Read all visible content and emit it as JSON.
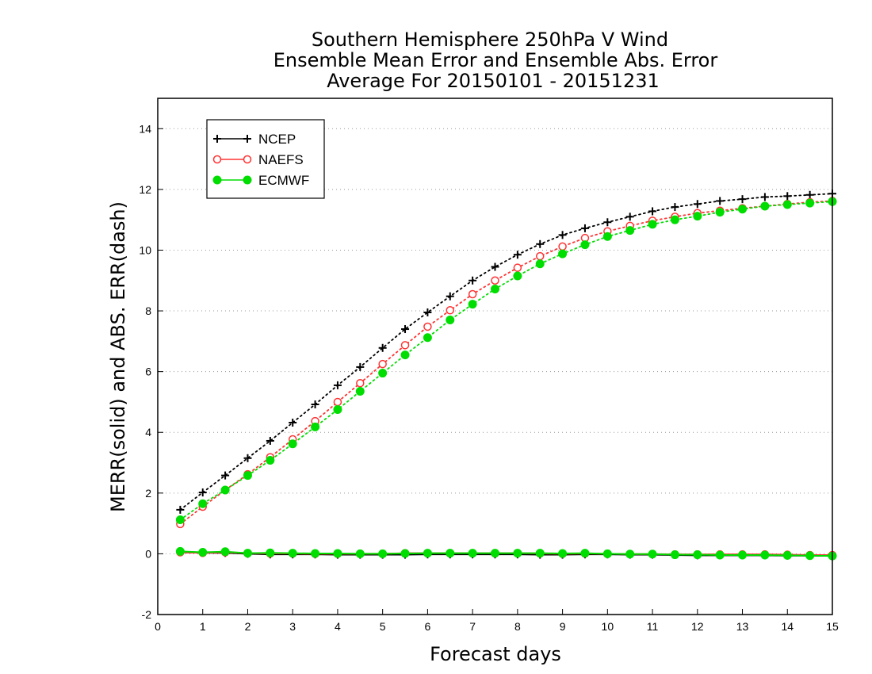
{
  "chart_data": {
    "type": "line",
    "title_lines": [
      "Southern Hemisphere 250hPa V Wind",
      "Ensemble Mean Error and Ensemble Abs. Error",
      "Average For 20150101 - 20151231"
    ],
    "xlabel": "Forecast days",
    "ylabel": "MERR(solid) and ABS. ERR(dash)",
    "xlim": [
      0,
      15
    ],
    "ylim": [
      -2,
      15
    ],
    "xticks": [
      "0",
      "1",
      "2",
      "3",
      "4",
      "5",
      "6",
      "7",
      "8",
      "9",
      "10",
      "11",
      "12",
      "13",
      "14",
      "15"
    ],
    "yticks": [
      "-2",
      "0",
      "2",
      "4",
      "6",
      "8",
      "10",
      "12",
      "14"
    ],
    "grid": "horizontal dotted",
    "legend_position": "top-left",
    "x": [
      0.5,
      1,
      1.5,
      2,
      2.5,
      3,
      3.5,
      4,
      4.5,
      5,
      5.5,
      6,
      6.5,
      7,
      7.5,
      8,
      8.5,
      9,
      9.5,
      10,
      10.5,
      11,
      11.5,
      12,
      12.5,
      13,
      13.5,
      14,
      14.5,
      15
    ],
    "series": [
      {
        "name": "NCEP",
        "color": "#000000",
        "marker": "plus",
        "abs_err": [
          1.45,
          2.02,
          2.58,
          3.15,
          3.72,
          4.32,
          4.92,
          5.55,
          6.15,
          6.78,
          7.4,
          7.95,
          8.48,
          9.0,
          9.45,
          9.85,
          10.2,
          10.5,
          10.72,
          10.92,
          11.1,
          11.28,
          11.42,
          11.52,
          11.62,
          11.68,
          11.75,
          11.78,
          11.82,
          11.86
        ],
        "mean_err": [
          0.05,
          0.03,
          0.03,
          0.0,
          -0.02,
          -0.02,
          -0.02,
          -0.03,
          -0.03,
          -0.03,
          -0.03,
          -0.02,
          -0.02,
          -0.02,
          -0.02,
          -0.02,
          -0.03,
          -0.03,
          -0.02,
          -0.02,
          -0.03,
          -0.03,
          -0.04,
          -0.05,
          -0.05,
          -0.05,
          -0.05,
          -0.06,
          -0.06,
          -0.07
        ]
      },
      {
        "name": "NAEFS",
        "color": "#ff3333",
        "marker": "open-circle",
        "abs_err": [
          0.98,
          1.55,
          2.1,
          2.62,
          3.18,
          3.77,
          4.37,
          5.0,
          5.62,
          6.25,
          6.87,
          7.48,
          8.02,
          8.55,
          9.0,
          9.42,
          9.8,
          10.12,
          10.4,
          10.62,
          10.8,
          10.97,
          11.1,
          11.22,
          11.3,
          11.38,
          11.45,
          11.52,
          11.58,
          11.62
        ],
        "mean_err": [
          0.05,
          0.03,
          0.05,
          0.02,
          0.01,
          0.01,
          0.0,
          0.0,
          0.0,
          0.0,
          0.02,
          0.02,
          0.02,
          0.02,
          0.02,
          0.02,
          0.01,
          0.0,
          0.01,
          0.0,
          -0.01,
          -0.01,
          -0.02,
          -0.02,
          -0.02,
          -0.02,
          -0.02,
          -0.03,
          -0.04,
          -0.04
        ]
      },
      {
        "name": "ECMWF",
        "color": "#00dd00",
        "marker": "filled-circle",
        "abs_err": [
          1.12,
          1.65,
          2.1,
          2.58,
          3.08,
          3.62,
          4.18,
          4.75,
          5.35,
          5.95,
          6.55,
          7.12,
          7.7,
          8.22,
          8.72,
          9.15,
          9.55,
          9.88,
          10.18,
          10.45,
          10.65,
          10.85,
          11.0,
          11.12,
          11.25,
          11.35,
          11.45,
          11.5,
          11.55,
          11.6
        ],
        "mean_err": [
          0.08,
          0.05,
          0.07,
          0.02,
          0.03,
          0.02,
          0.01,
          0.01,
          0.0,
          0.0,
          0.01,
          0.02,
          0.02,
          0.02,
          0.02,
          0.02,
          0.02,
          0.01,
          0.02,
          0.0,
          -0.01,
          -0.01,
          -0.03,
          -0.03,
          -0.04,
          -0.04,
          -0.04,
          -0.05,
          -0.06,
          -0.07
        ]
      }
    ]
  }
}
